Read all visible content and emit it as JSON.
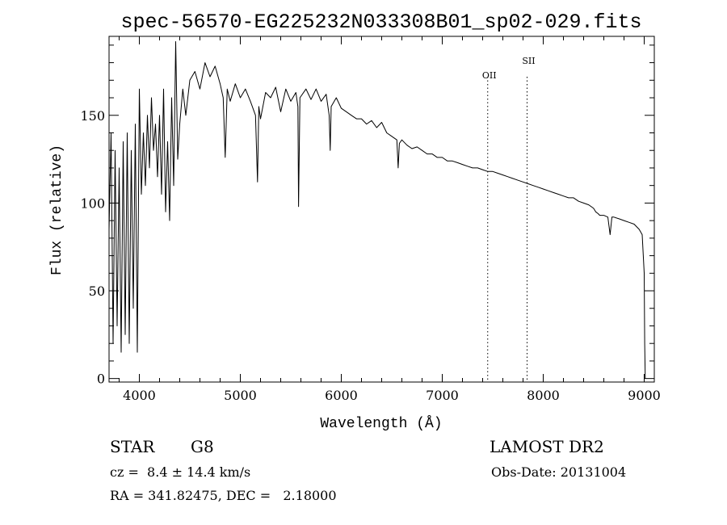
{
  "chart_data": {
    "type": "line",
    "title": "spec-56570-EG225232N033308B01_sp02-029.fits",
    "xlabel": "Wavelength (Å)",
    "ylabel": "Flux (relative)",
    "xlim": [
      3700,
      9100
    ],
    "ylim": [
      -2,
      195
    ],
    "x_ticks": [
      4000,
      5000,
      6000,
      7000,
      8000,
      9000
    ],
    "y_ticks": [
      0,
      50,
      100,
      150
    ],
    "grid": false,
    "legend": "none",
    "series": [
      {
        "x": [
          3700,
          3720,
          3740,
          3760,
          3780,
          3800,
          3820,
          3840,
          3860,
          3880,
          3900,
          3920,
          3940,
          3960,
          3980,
          4000,
          4020,
          4040,
          4060,
          4080,
          4100,
          4120,
          4140,
          4160,
          4180,
          4200,
          4220,
          4240,
          4260,
          4280,
          4300,
          4320,
          4340,
          4360,
          4380,
          4400,
          4430,
          4460,
          4500,
          4550,
          4600,
          4650,
          4700,
          4750,
          4800,
          4830,
          4850,
          4870,
          4900,
          4950,
          5000,
          5050,
          5100,
          5150,
          5170,
          5183,
          5200,
          5250,
          5300,
          5350,
          5400,
          5450,
          5500,
          5550,
          5570,
          5577,
          5590,
          5650,
          5700,
          5750,
          5800,
          5850,
          5880,
          5890,
          5900,
          5950,
          6000,
          6050,
          6100,
          6150,
          6200,
          6250,
          6300,
          6350,
          6400,
          6450,
          6500,
          6550,
          6563,
          6575,
          6600,
          6650,
          6700,
          6750,
          6800,
          6850,
          6900,
          6950,
          7000,
          7050,
          7100,
          7150,
          7200,
          7250,
          7300,
          7350,
          7400,
          7450,
          7500,
          7550,
          7600,
          7650,
          7700,
          7750,
          7800,
          7850,
          7900,
          7950,
          8000,
          8050,
          8100,
          8150,
          8200,
          8250,
          8300,
          8350,
          8400,
          8450,
          8498,
          8520,
          8542,
          8560,
          8600,
          8640,
          8662,
          8680,
          8700,
          8750,
          8800,
          8850,
          8900,
          8950,
          8980,
          9000,
          9005,
          9010
        ],
        "y": [
          85,
          140,
          20,
          130,
          30,
          120,
          15,
          135,
          25,
          140,
          20,
          130,
          40,
          145,
          15,
          165,
          105,
          140,
          110,
          150,
          120,
          160,
          130,
          145,
          115,
          150,
          105,
          165,
          95,
          135,
          90,
          160,
          110,
          192,
          125,
          145,
          165,
          150,
          170,
          175,
          165,
          180,
          172,
          178,
          168,
          160,
          126,
          165,
          158,
          168,
          160,
          165,
          158,
          150,
          112,
          155,
          148,
          163,
          160,
          166,
          152,
          165,
          158,
          163,
          155,
          98,
          160,
          165,
          159,
          165,
          158,
          162,
          150,
          130,
          155,
          160,
          154,
          152,
          150,
          148,
          148,
          145,
          147,
          143,
          146,
          140,
          138,
          136,
          120,
          134,
          136,
          133,
          131,
          132,
          130,
          128,
          128,
          126,
          126,
          124,
          124,
          123,
          122,
          121,
          120,
          120,
          119,
          118,
          118,
          117,
          116,
          115,
          114,
          113,
          112,
          111,
          110,
          109,
          108,
          107,
          106,
          105,
          104,
          103,
          103,
          101,
          100,
          99,
          97,
          95,
          94,
          93,
          93,
          92,
          82,
          92,
          92,
          91,
          90,
          89,
          88,
          85,
          82,
          60,
          20,
          0
        ]
      }
    ],
    "annotations": [
      {
        "label": "OII",
        "x": 7450
      },
      {
        "label": "SII",
        "x": 7840
      }
    ]
  },
  "info": {
    "object_type": "STAR",
    "subclass": "G8",
    "survey": "LAMOST DR2",
    "velocity_line": "cz =  8.4 ± 14.4 km/s",
    "obs_date": "Obs-Date: 20131004",
    "coords_line": "RA = 341.82475, DEC =   2.18000"
  }
}
